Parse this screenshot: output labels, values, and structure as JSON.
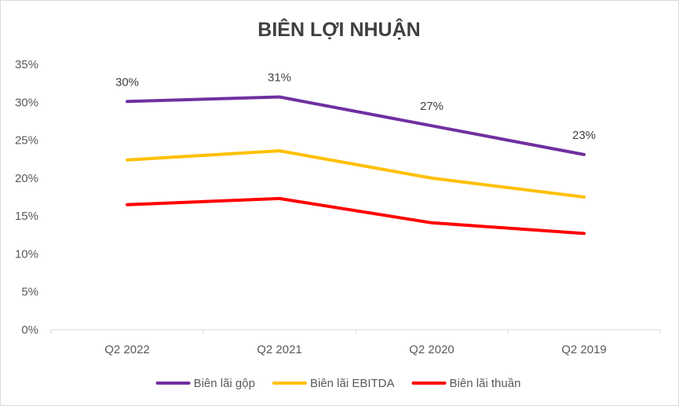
{
  "chart_data": {
    "type": "line",
    "title": "BIÊN LỢI NHUẬN",
    "xlabel": "",
    "ylabel": "",
    "categories": [
      "Q2 2022",
      "Q2 2021",
      "Q2 2020",
      "Q2 2019"
    ],
    "ylim": [
      0,
      35
    ],
    "yticks": [
      0,
      5,
      10,
      15,
      20,
      25,
      30,
      35
    ],
    "ytick_labels": [
      "0%",
      "5%",
      "10%",
      "15%",
      "20%",
      "25%",
      "30%",
      "35%"
    ],
    "grid": false,
    "legend_position": "bottom",
    "series": [
      {
        "name": "Biên lãi gộp",
        "color": "#7030a0",
        "values": [
          30.1,
          30.7,
          26.9,
          23.1
        ],
        "data_labels": [
          "30%",
          "31%",
          "27%",
          "23%"
        ]
      },
      {
        "name": "Biên lãi EBITDA",
        "color": "#ffc000",
        "values": [
          22.4,
          23.6,
          20.0,
          17.5
        ]
      },
      {
        "name": "Biên lãi thuần",
        "color": "#ff0000",
        "values": [
          16.5,
          17.3,
          14.1,
          12.7
        ]
      }
    ]
  }
}
